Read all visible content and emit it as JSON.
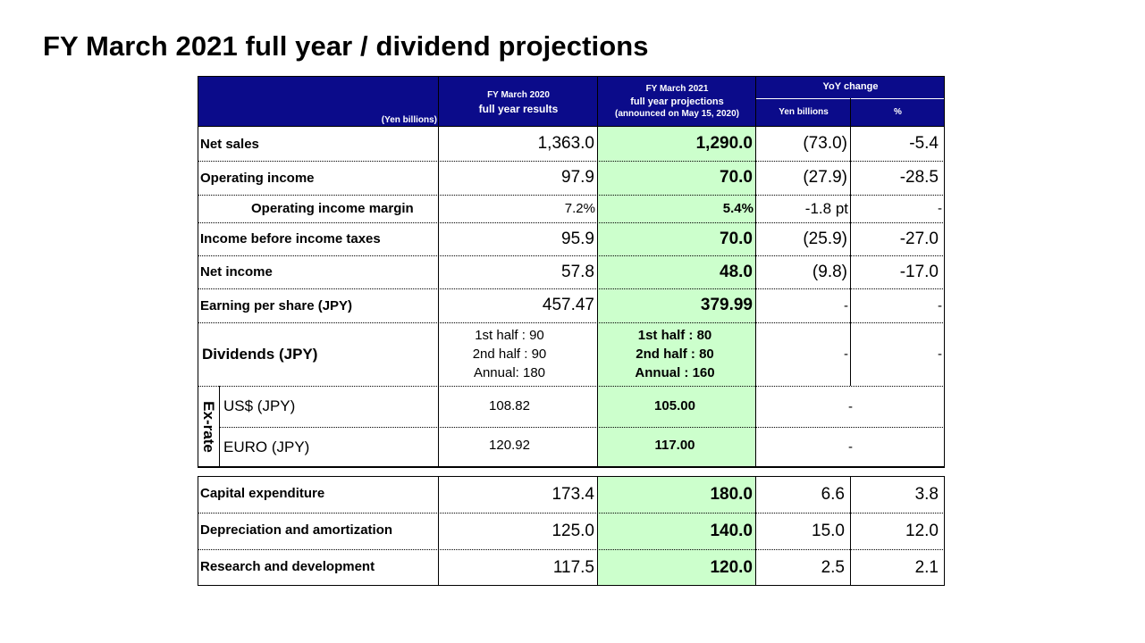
{
  "page_title": "FY March 2021 full year / dividend projections",
  "header": {
    "unit": "(Yen billions)",
    "col_fy2020": [
      "FY March 2020",
      "full year results"
    ],
    "col_fy2021": [
      "FY March 2021",
      "full year projections",
      "(announced on May 15, 2020)"
    ],
    "col_yoy": "YoY change",
    "col_yen": "Yen billions",
    "col_pct": "%"
  },
  "rows": [
    {
      "label": "Net sales",
      "fy2020": "1,363.0",
      "fy2021": "1,290.0",
      "yen": "(73.0)",
      "pct": "-5.4"
    },
    {
      "label": "Operating income",
      "fy2020": "97.9",
      "fy2021": "70.0",
      "yen": "(27.9)",
      "pct": "-28.5"
    },
    {
      "label": "Operating income margin",
      "fy2020": "7.2%",
      "fy2021": "5.4%",
      "yen": "-1.8 pt",
      "pct": "-"
    },
    {
      "label": "Income before income taxes",
      "fy2020": "95.9",
      "fy2021": "70.0",
      "yen": "(25.9)",
      "pct": "-27.0"
    },
    {
      "label": "Net income",
      "fy2020": "57.8",
      "fy2021": "48.0",
      "yen": "(9.8)",
      "pct": "-17.0"
    },
    {
      "label": "Earning per share (JPY)",
      "fy2020": "457.47",
      "fy2021": "379.99",
      "yen": "-",
      "pct": "-"
    }
  ],
  "dividends": {
    "label": "Dividends (JPY)",
    "fy2020": [
      "1st half : 90",
      "2nd half : 90",
      "Annual: 180"
    ],
    "fy2021": [
      "1st half : 80",
      "2nd half : 80",
      "Annual : 160"
    ],
    "yen": "-",
    "pct": "-"
  },
  "exrate": {
    "label": "Ex-rate",
    "rows": [
      {
        "label": "US$ (JPY)",
        "fy2020": "108.82",
        "fy2021": "105.00",
        "yoy": "-"
      },
      {
        "label": "EURO (JPY)",
        "fy2020": "120.92",
        "fy2021": "117.00",
        "yoy": "-"
      }
    ]
  },
  "bottom_rows": [
    {
      "label": "Capital expenditure",
      "fy2020": "173.4",
      "fy2021": "180.0",
      "yen": "6.6",
      "pct": "3.8"
    },
    {
      "label": "Depreciation and amortization",
      "fy2020": "125.0",
      "fy2021": "140.0",
      "yen": "15.0",
      "pct": "12.0"
    },
    {
      "label": "Research and development",
      "fy2020": "117.5",
      "fy2021": "120.0",
      "yen": "2.5",
      "pct": "2.1"
    }
  ]
}
